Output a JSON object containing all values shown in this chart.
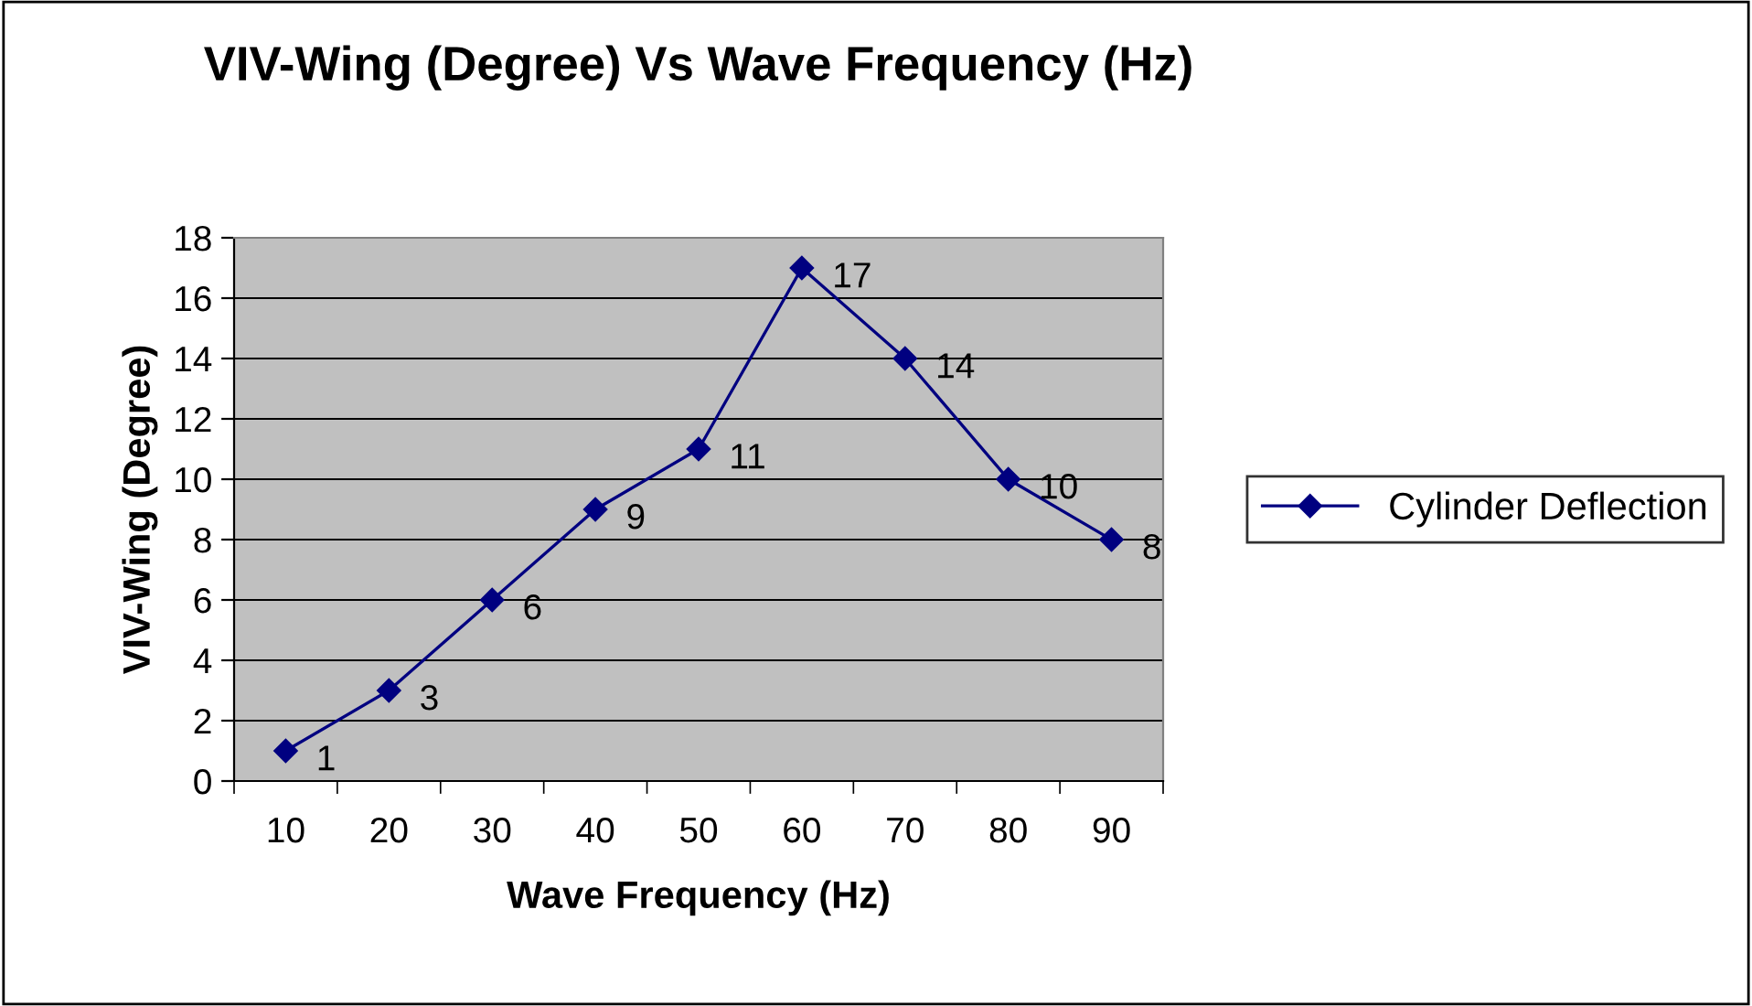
{
  "chart_data": {
    "type": "line",
    "title": "VIV-Wing (Degree) Vs Wave Frequency (Hz)",
    "xlabel": "Wave Frequency (Hz)",
    "ylabel": "VIV-Wing (Degree)",
    "categories": [
      "10",
      "20",
      "30",
      "40",
      "50",
      "60",
      "70",
      "80",
      "90"
    ],
    "series": [
      {
        "name": "Cylinder Deflection",
        "color": "#000080",
        "values": [
          1,
          3,
          6,
          9,
          11,
          17,
          14,
          10,
          8
        ]
      }
    ],
    "ylim": [
      0,
      18
    ],
    "yticks": [
      0,
      2,
      4,
      6,
      8,
      10,
      12,
      14,
      16,
      18
    ],
    "grid": "y",
    "legend": "right",
    "marker": "diamond",
    "line_style": "solid",
    "data_labels": true
  }
}
